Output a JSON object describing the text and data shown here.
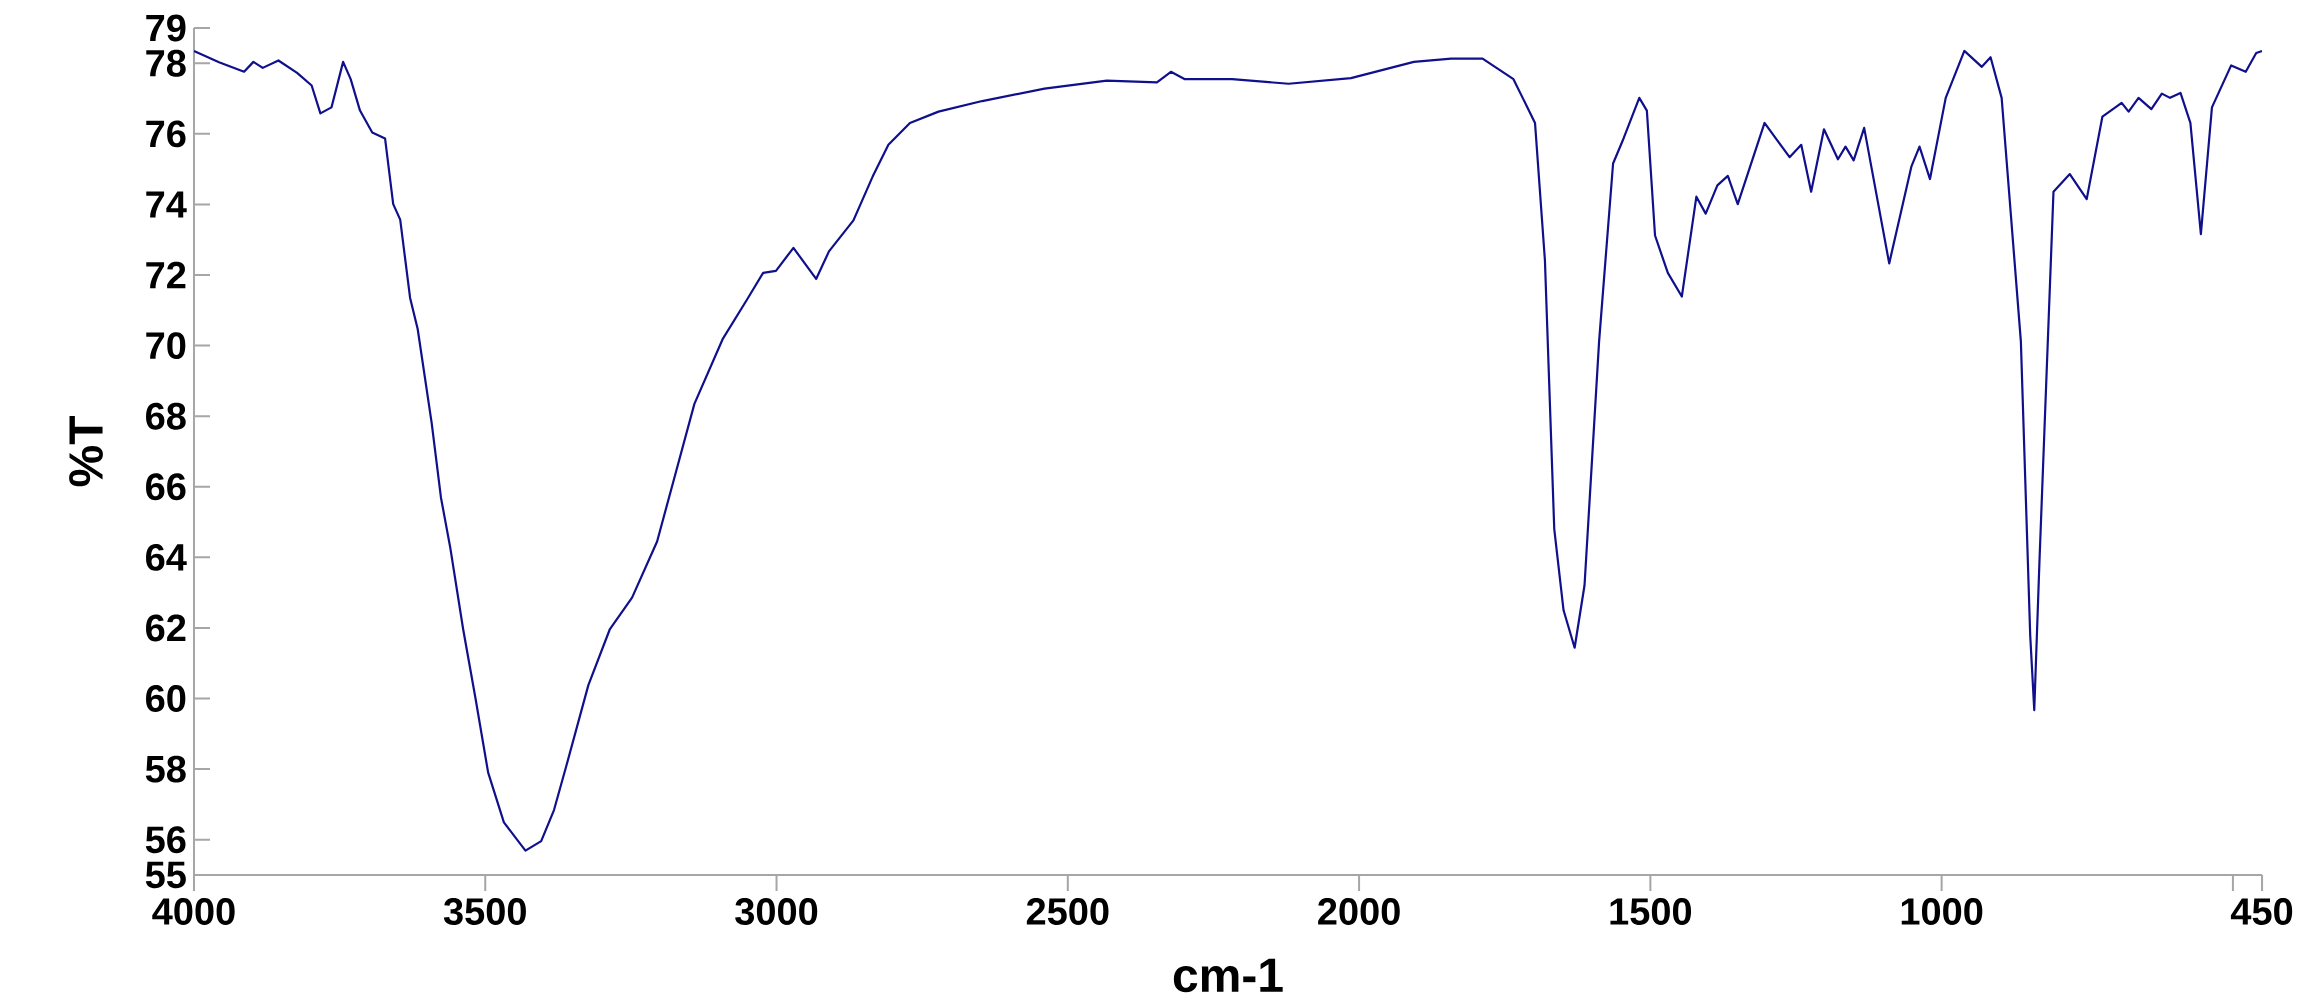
{
  "chart_data": {
    "type": "line",
    "xlabel": "cm-1",
    "ylabel": "%T",
    "xlim": [
      4000,
      450
    ],
    "ylim": [
      55,
      79
    ],
    "xticks": [
      4000,
      3500,
      3000,
      2500,
      2000,
      1500,
      1000,
      {
        "value": 500,
        "label": null
      },
      450
    ],
    "yticks": [
      55,
      56,
      58,
      60,
      62,
      64,
      66,
      68,
      70,
      72,
      74,
      76,
      78,
      79
    ],
    "grid": false,
    "marker": "none",
    "line_style": "solid",
    "series": [
      {
        "color": "#10108c",
        "x": [
          4000,
          3957,
          3914,
          3898,
          3882,
          3855,
          3823,
          3798,
          3783,
          3764,
          3744,
          3731,
          3715,
          3694,
          3672,
          3658,
          3646,
          3629,
          3616,
          3592,
          3576,
          3560,
          3538,
          3517,
          3495,
          3468,
          3431,
          3404,
          3382,
          3361,
          3323,
          3286,
          3248,
          3205,
          3173,
          3141,
          3092,
          3049,
          3023,
          3001,
          2971,
          2932,
          2910,
          2868,
          2835,
          2808,
          2771,
          2722,
          2647,
          2540,
          2433,
          2347,
          2323,
          2299,
          2218,
          2121,
          2014,
          1906,
          1842,
          1788,
          1735,
          1698,
          1681,
          1665,
          1649,
          1630,
          1613,
          1588,
          1564,
          1546,
          1519,
          1506,
          1492,
          1470,
          1446,
          1421,
          1405,
          1385,
          1367,
          1350,
          1304,
          1261,
          1241,
          1224,
          1202,
          1178,
          1165,
          1151,
          1133,
          1090,
          1052,
          1038,
          1020,
          993,
          961,
          931,
          916,
          897,
          864,
          848,
          841,
          832,
          808,
          780,
          751,
          724,
          691,
          679,
          662,
          640,
          622,
          608,
          590,
          573,
          555,
          536,
          503,
          478,
          460,
          450
        ],
        "values": [
          78.35,
          78.03,
          77.76,
          78.04,
          77.87,
          78.08,
          77.73,
          77.37,
          76.58,
          76.75,
          78.04,
          77.55,
          76.66,
          76.04,
          75.87,
          74.01,
          73.57,
          71.35,
          70.47,
          67.81,
          65.69,
          64.27,
          61.97,
          60.03,
          57.9,
          56.49,
          55.69,
          55.96,
          56.84,
          58.08,
          60.38,
          61.97,
          62.86,
          64.45,
          66.4,
          68.35,
          70.2,
          71.35,
          72.06,
          72.12,
          72.77,
          71.89,
          72.67,
          73.55,
          74.79,
          75.69,
          76.31,
          76.63,
          76.93,
          77.28,
          77.51,
          77.46,
          77.76,
          77.55,
          77.55,
          77.42,
          77.58,
          78.04,
          78.13,
          78.13,
          77.55,
          76.31,
          72.42,
          64.81,
          62.5,
          61.44,
          63.21,
          70.12,
          75.16,
          75.87,
          77.02,
          76.66,
          73.12,
          72.06,
          71.39,
          74.22,
          73.74,
          74.54,
          74.81,
          74.01,
          76.31,
          75.34,
          75.69,
          74.36,
          76.13,
          75.28,
          75.64,
          75.25,
          76.17,
          72.33,
          75.07,
          75.64,
          74.72,
          77.02,
          78.35,
          77.9,
          78.17,
          77.02,
          70.12,
          61.8,
          59.67,
          63.92,
          74.36,
          74.86,
          74.15,
          76.49,
          76.88,
          76.63,
          77.02,
          76.7,
          77.14,
          77.02,
          77.16,
          76.31,
          73.16,
          76.75,
          77.94,
          77.76,
          78.29,
          78.35
        ]
      }
    ]
  }
}
